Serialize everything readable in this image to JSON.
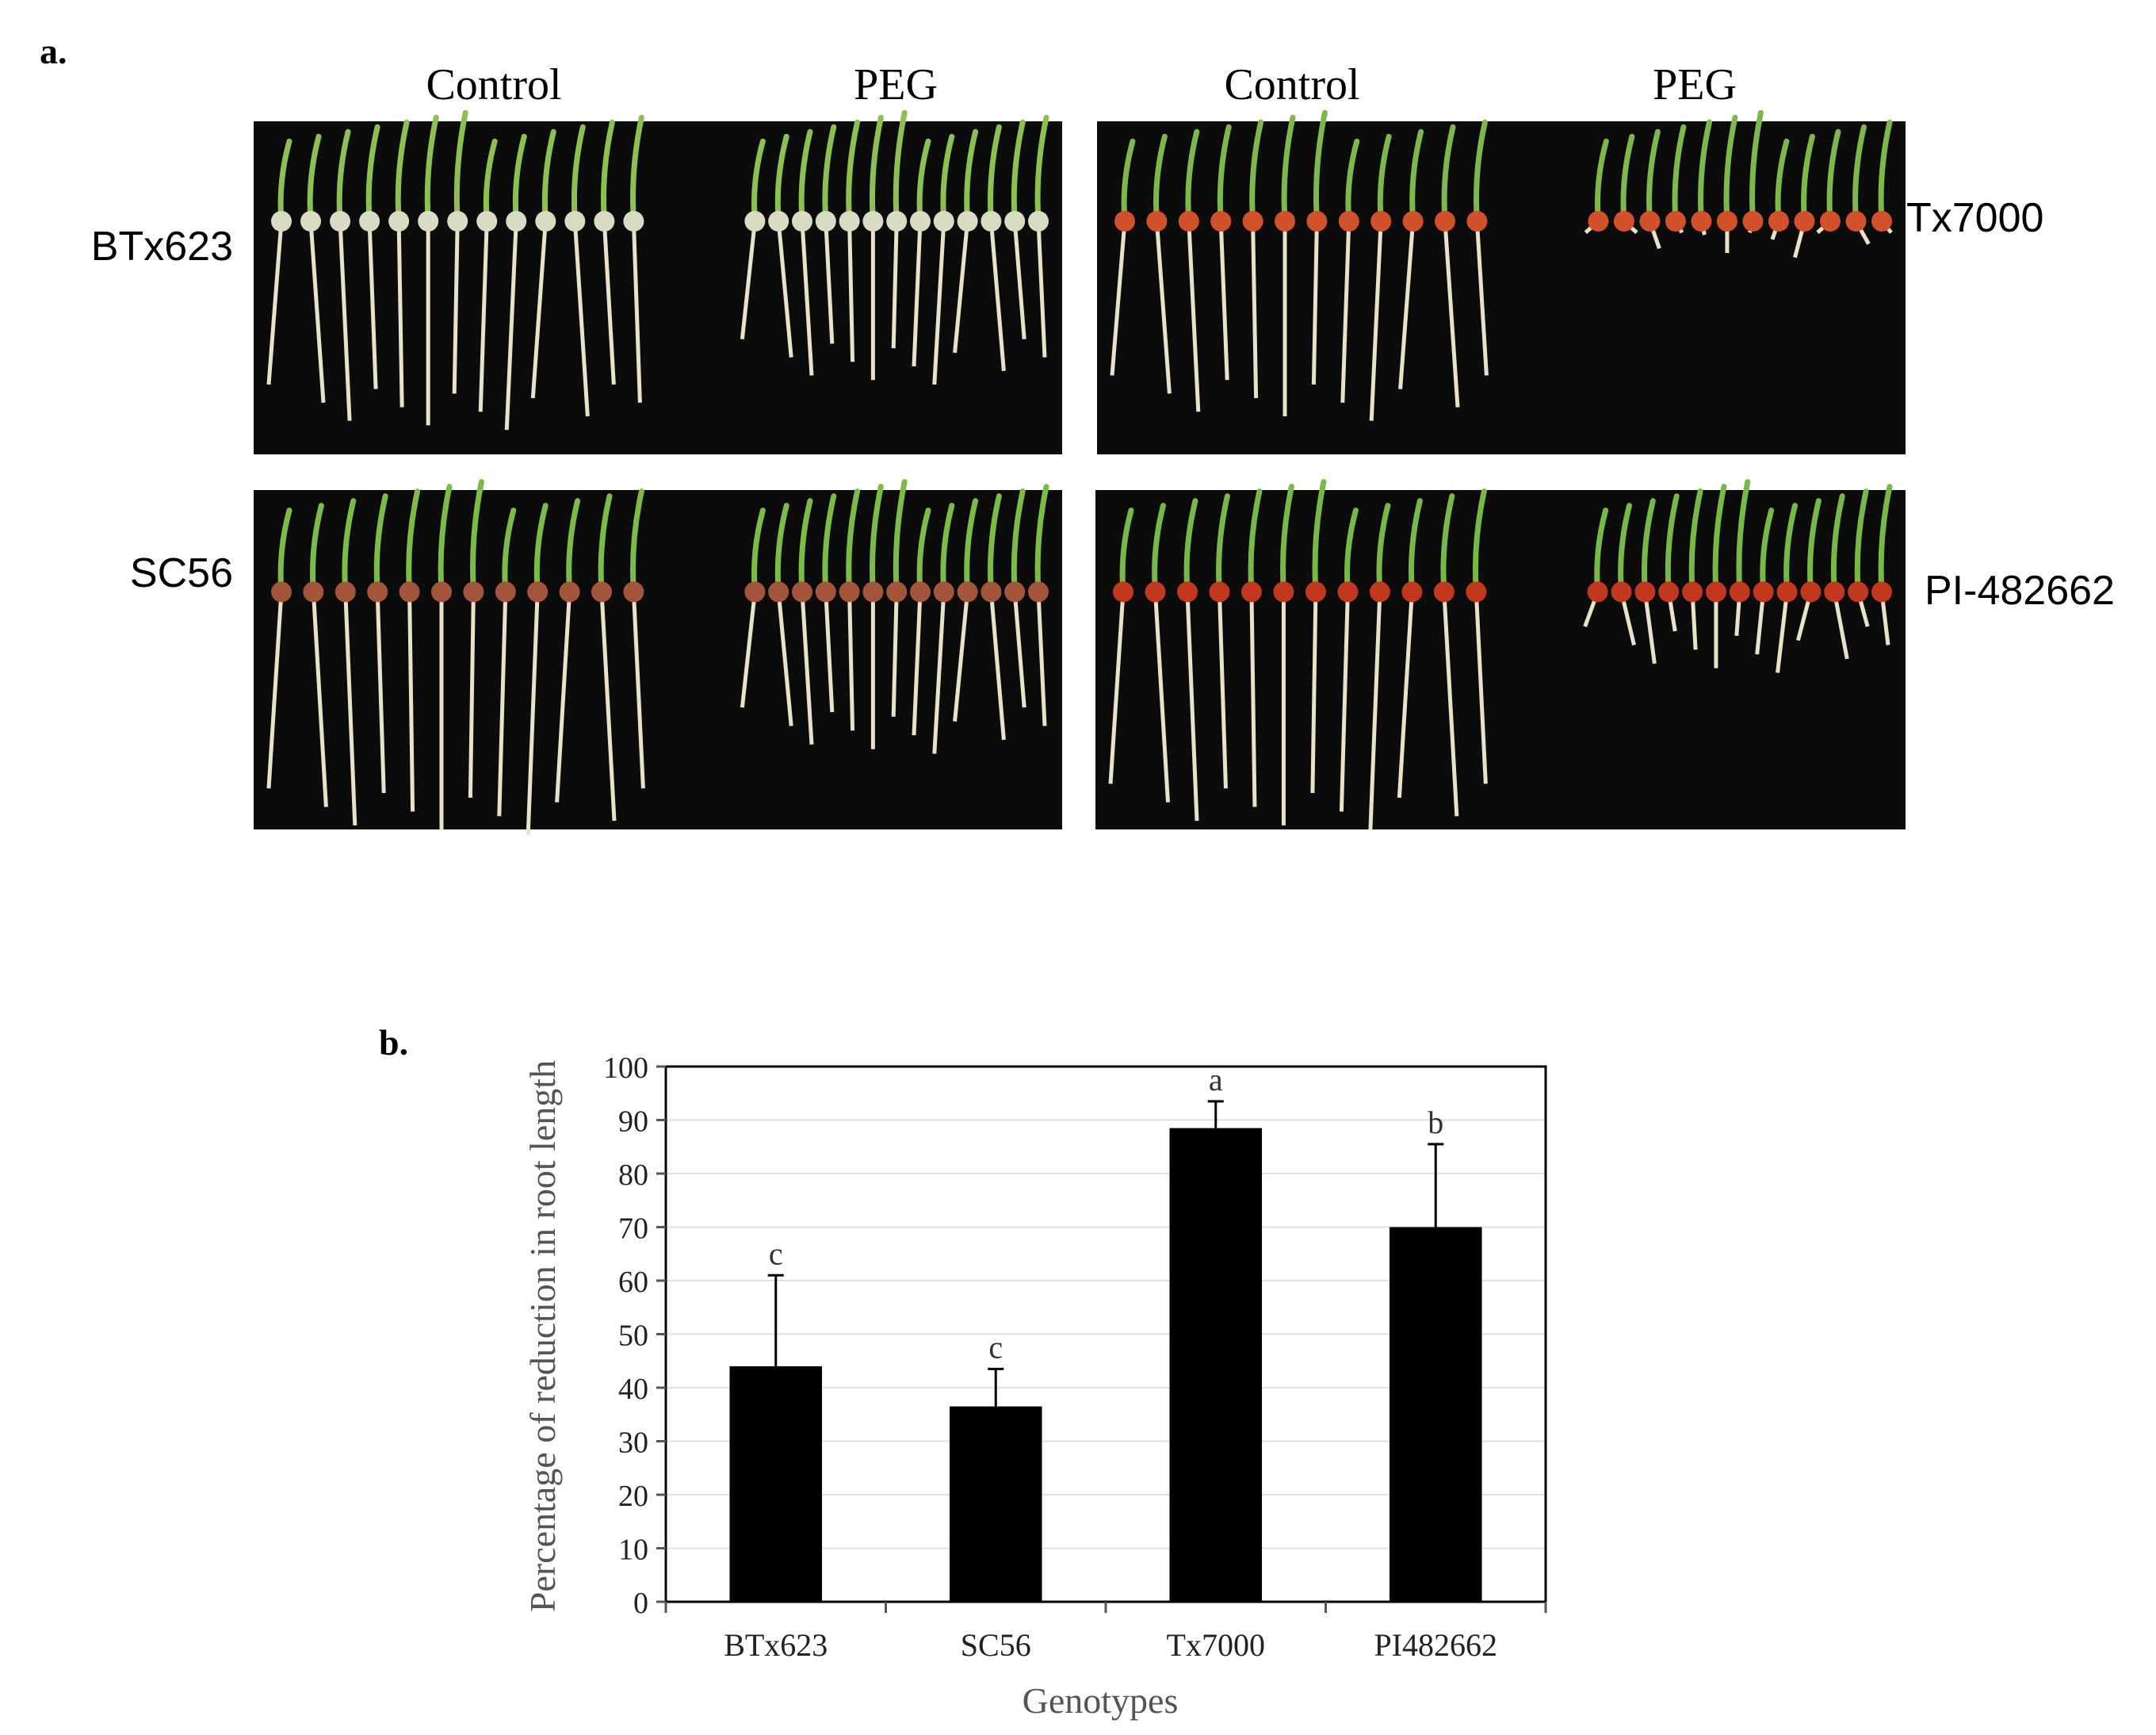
{
  "panel_a": {
    "label": "a.",
    "column_headers": [
      "Control",
      "PEG",
      "Control",
      "PEG"
    ],
    "genotype_labels": {
      "top_left": "BTx623",
      "bottom_left": "SC56",
      "top_right": "Tx7000",
      "bottom_right": "PI-482662"
    },
    "photo_background": "#0b0b0b",
    "photos": [
      {
        "genotype": "BTx623",
        "seed_color": "#d9dcc2",
        "control_seedlings": 13,
        "peg_seedlings": 13,
        "control_root": 0.82,
        "peg_root": 0.62,
        "stem_color": "#8cc152"
      },
      {
        "genotype": "Tx7000",
        "seed_color": "#d2502a",
        "control_seedlings": 12,
        "peg_seedlings": 12,
        "control_root": 0.78,
        "peg_root": 0.06,
        "stem_color": "#7fb84a"
      },
      {
        "genotype": "SC56",
        "seed_color": "#a2553a",
        "control_seedlings": 12,
        "peg_seedlings": 13,
        "control_root": 0.95,
        "peg_root": 0.6,
        "stem_color": "#7dbb48"
      },
      {
        "genotype": "PI-482662",
        "seed_color": "#c2381e",
        "control_seedlings": 12,
        "peg_seedlings": 13,
        "control_root": 0.93,
        "peg_root": 0.25,
        "stem_color": "#78b846"
      }
    ]
  },
  "panel_b": {
    "label": "b."
  },
  "chart_data": {
    "type": "bar",
    "categories": [
      "BTx623",
      "SC56",
      "Tx7000",
      "PI482662"
    ],
    "values": [
      44,
      36.5,
      88.5,
      70
    ],
    "error": [
      17,
      7,
      5,
      15.5
    ],
    "significance_letters": [
      "c",
      "c",
      "a",
      "b"
    ],
    "xlabel": "Genotypes",
    "ylabel": "Percentage of reduction in root length",
    "ylim": [
      0,
      100
    ],
    "yticks": [
      0,
      10,
      20,
      30,
      40,
      50,
      60,
      70,
      80,
      90,
      100
    ],
    "grid": true,
    "bar_color": "#000000",
    "grid_color": "#e2e2e2"
  }
}
